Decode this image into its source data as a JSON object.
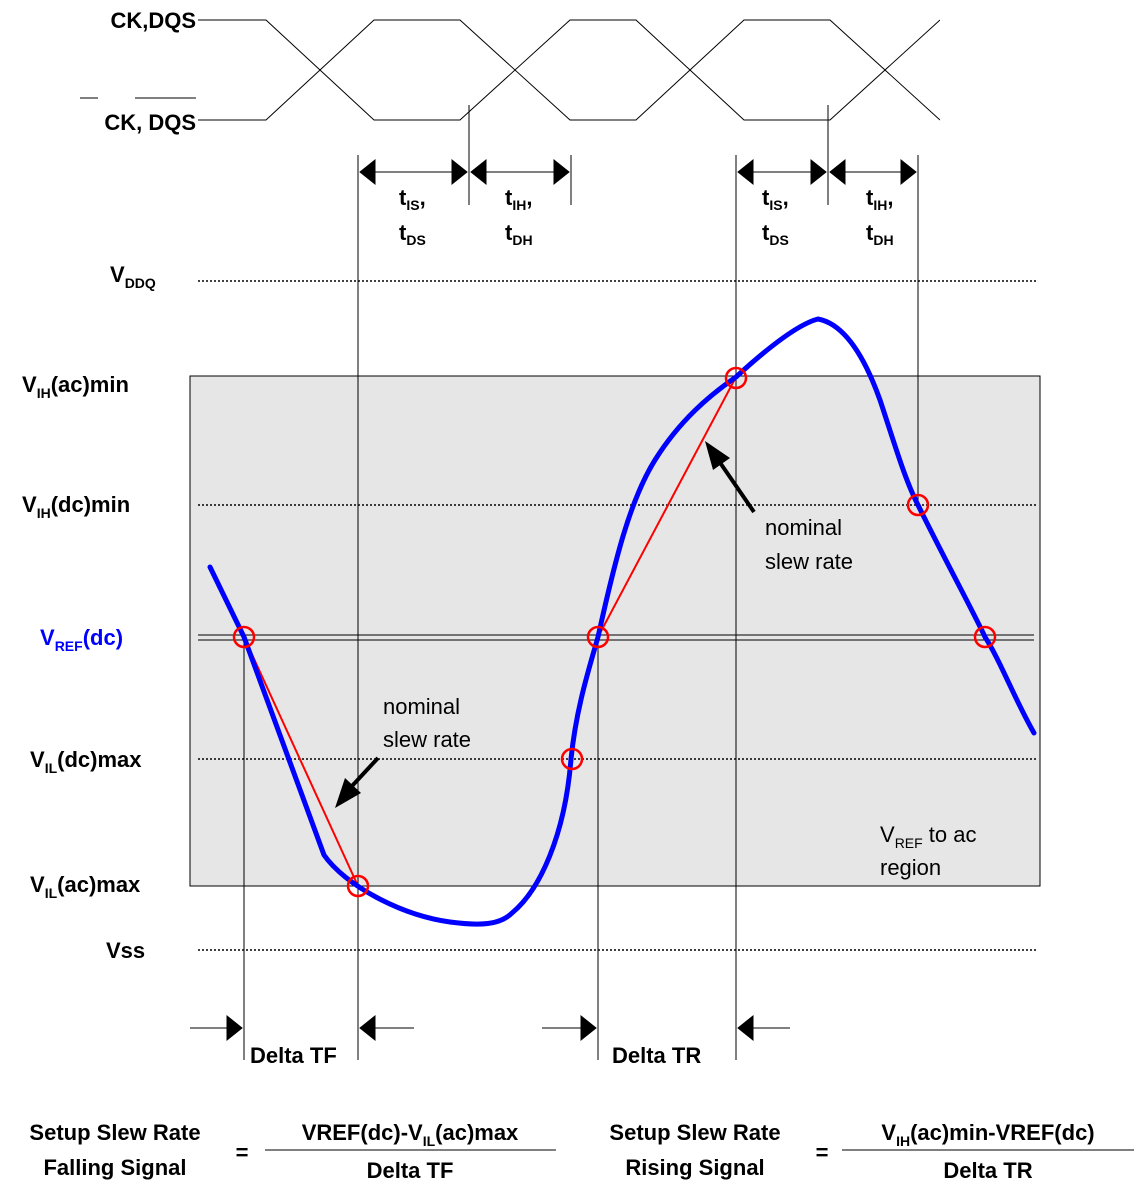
{
  "colors": {
    "signal": "#0000ff",
    "slope": "#ff0000",
    "region_fill": "#e6e6e6",
    "vref_label": "#0000ff"
  },
  "clock": {
    "ck_label": "CK,DQS",
    "ckb_label": "CK, DQS"
  },
  "timing": {
    "tis": {
      "main": "t",
      "sub": "IS",
      "suffix": ","
    },
    "tds": {
      "main": "t",
      "sub": "DS"
    },
    "tih": {
      "main": "t",
      "sub": "IH",
      "suffix": ","
    },
    "tdh": {
      "main": "t",
      "sub": "DH"
    }
  },
  "levels": {
    "vddq": {
      "main": "V",
      "sub": "DDQ"
    },
    "vih_ac": {
      "main": "V",
      "sub": "IH",
      "rest": "(ac)min"
    },
    "vih_dc": {
      "main": "V",
      "sub": "IH",
      "rest": "(dc)min"
    },
    "vref": {
      "main": "V",
      "sub": "REF",
      "rest": "(dc)"
    },
    "vil_dc": {
      "main": "V",
      "sub": "IL",
      "rest": "(dc)max"
    },
    "vil_ac": {
      "main": "V",
      "sub": "IL",
      "rest": "(ac)max"
    },
    "vss": {
      "text": "Vss"
    }
  },
  "annotations": {
    "nominal_line1": "nominal",
    "nominal_line2": "slew rate",
    "region": {
      "main": "V",
      "sub": "REF",
      "rest": " to ac",
      "line2": "region"
    }
  },
  "deltas": {
    "tf": "Delta TF",
    "tr": "Delta TR"
  },
  "formulas": {
    "falling": {
      "name1": "Setup Slew Rate",
      "name2": "Falling Signal",
      "equals": "=",
      "num_a": "VREF(dc)-V",
      "num_sub": "IL",
      "num_b": "(ac)max",
      "den": "Delta TF"
    },
    "rising": {
      "name1": "Setup Slew Rate",
      "name2": "Rising Signal",
      "equals": "=",
      "num_a": "V",
      "num_sub": "IH",
      "num_b": "(ac)min-VREF(dc)",
      "den": "Delta TR"
    }
  }
}
